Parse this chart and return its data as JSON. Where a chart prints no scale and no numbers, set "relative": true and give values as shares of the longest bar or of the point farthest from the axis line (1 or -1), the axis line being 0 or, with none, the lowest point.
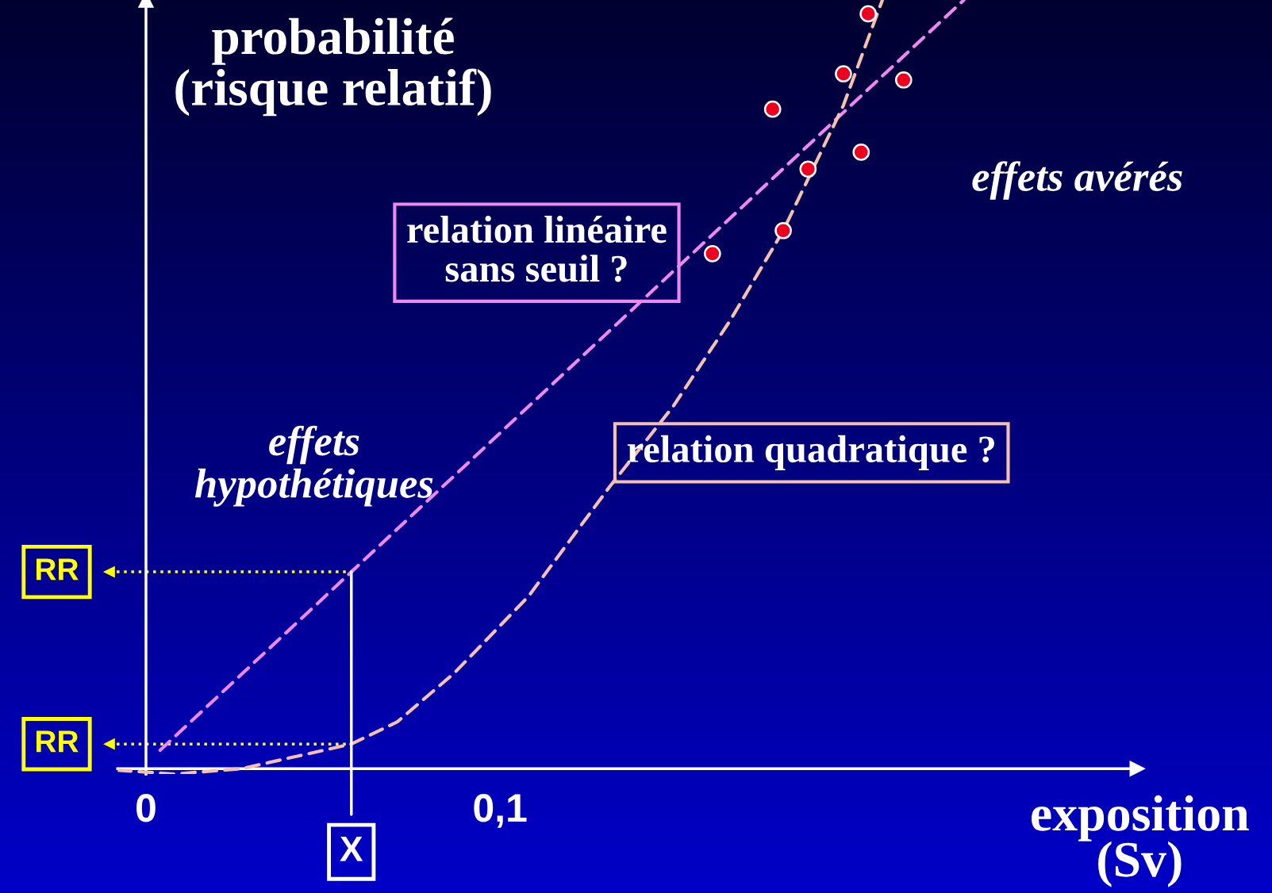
{
  "chart_data": {
    "type": "line",
    "ylabel": "probabilité\n(risque relatif)",
    "xlabel": "exposition\n(Sv)",
    "relative": true,
    "xlim": [
      -0.008,
      0.28
    ],
    "xticks": [
      0,
      {
        "value": 0.1,
        "label": "0,1"
      }
    ],
    "tick_labels": "x",
    "series": [
      {
        "color": "#ee88ee",
        "line_style": "dashed",
        "x": [
          0.004,
          0.058,
          0.231
        ],
        "values": [
          0.024,
          0.256,
          1.0
        ]
      },
      {
        "color": "#f4c0b0",
        "line_style": "dashed",
        "x": [
          -0.008,
          0.008,
          0.027,
          0.058,
          0.071,
          0.087,
          0.108,
          0.131,
          0.149,
          0.165,
          0.18,
          0.197,
          0.208
        ],
        "values": [
          -0.002,
          -0.007,
          0.0,
          0.032,
          0.061,
          0.124,
          0.224,
          0.367,
          0.472,
          0.583,
          0.7,
          0.863,
          1.0
        ]
      },
      {
        "type": "scatter",
        "color": "#ee0020",
        "marker": "circle",
        "x": [
          0.204,
          0.197,
          0.214,
          0.177,
          0.202,
          0.187,
          0.18,
          0.16
        ],
        "values": [
          0.982,
          0.904,
          0.896,
          0.858,
          0.802,
          0.78,
          0.7,
          0.67
        ]
      }
    ],
    "annotations": [
      "relation linéaire\nsans seuil ?",
      "relation quadratique ?",
      "effets\nhypothétiques",
      "effets avérés",
      {
        "text": "X",
        "x": 0.058,
        "y": 0.256
      }
    ],
    "ref_lines": [
      {
        "axis": "y",
        "value": 0.256,
        "label": "RR",
        "color": "#ffff00",
        "line_style": "dotted"
      },
      {
        "axis": "y",
        "value": 0.032,
        "label": "RR",
        "color": "#ffff00",
        "line_style": "dotted"
      }
    ]
  }
}
